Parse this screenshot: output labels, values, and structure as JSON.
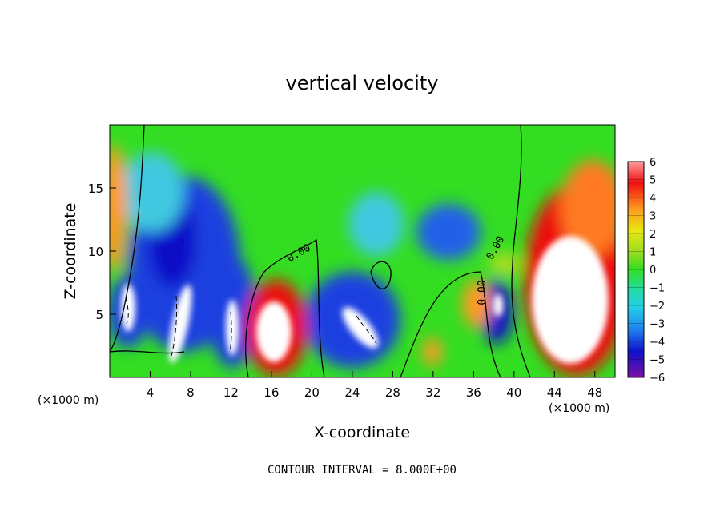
{
  "chart_data": {
    "type": "heatmap",
    "title": "vertical velocity",
    "xlabel": "X-coordinate",
    "ylabel": "Z-coordinate",
    "x_unit_left": "(×1000 m)",
    "x_unit_right": "(×1000 m)",
    "x_ticks": [
      4,
      8,
      12,
      16,
      20,
      24,
      28,
      32,
      36,
      40,
      44,
      48
    ],
    "y_ticks": [
      5,
      10,
      15
    ],
    "xlim": [
      0,
      50
    ],
    "ylim": [
      0,
      20
    ],
    "colorbar_ticks": [
      "6",
      "5",
      "4",
      "3",
      "2",
      "1",
      "0",
      "−1",
      "−2",
      "−3",
      "−4",
      "−5",
      "−6"
    ],
    "colorbar_range": [
      -6,
      6
    ],
    "contour_labels": [
      "0.00",
      "0.00",
      "0.00"
    ],
    "footer": "CONTOUR INTERVAL = 8.000E+00",
    "colors": {
      "background_zero": "#33dd22",
      "positive_high": "#ee1111",
      "negative_low": "#1010c8"
    }
  }
}
